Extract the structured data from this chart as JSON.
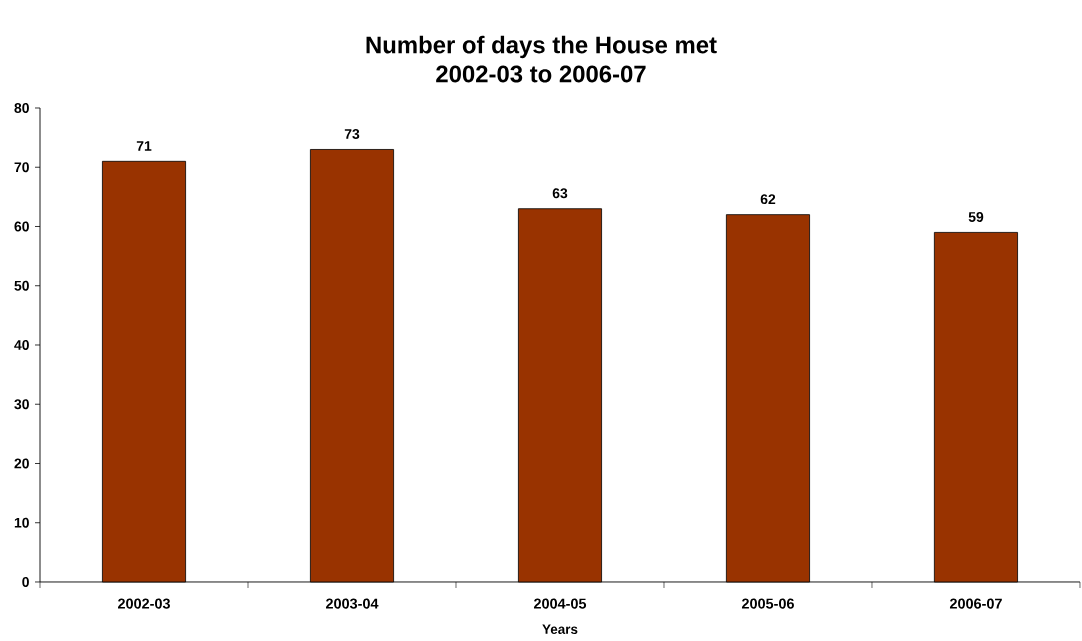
{
  "chart_data": {
    "type": "bar",
    "title": "Number of days the House met",
    "subtitle": "2002-03 to 2006-07",
    "xlabel": "Years",
    "categories": [
      "2002-03",
      "2003-04",
      "2004-05",
      "2005-06",
      "2006-07"
    ],
    "values": [
      71,
      73,
      63,
      62,
      59
    ],
    "color": "#993300",
    "ylim": [
      0,
      80
    ],
    "yticks": [
      0,
      10,
      20,
      30,
      40,
      50,
      60,
      70,
      80
    ],
    "data_labels": true
  }
}
